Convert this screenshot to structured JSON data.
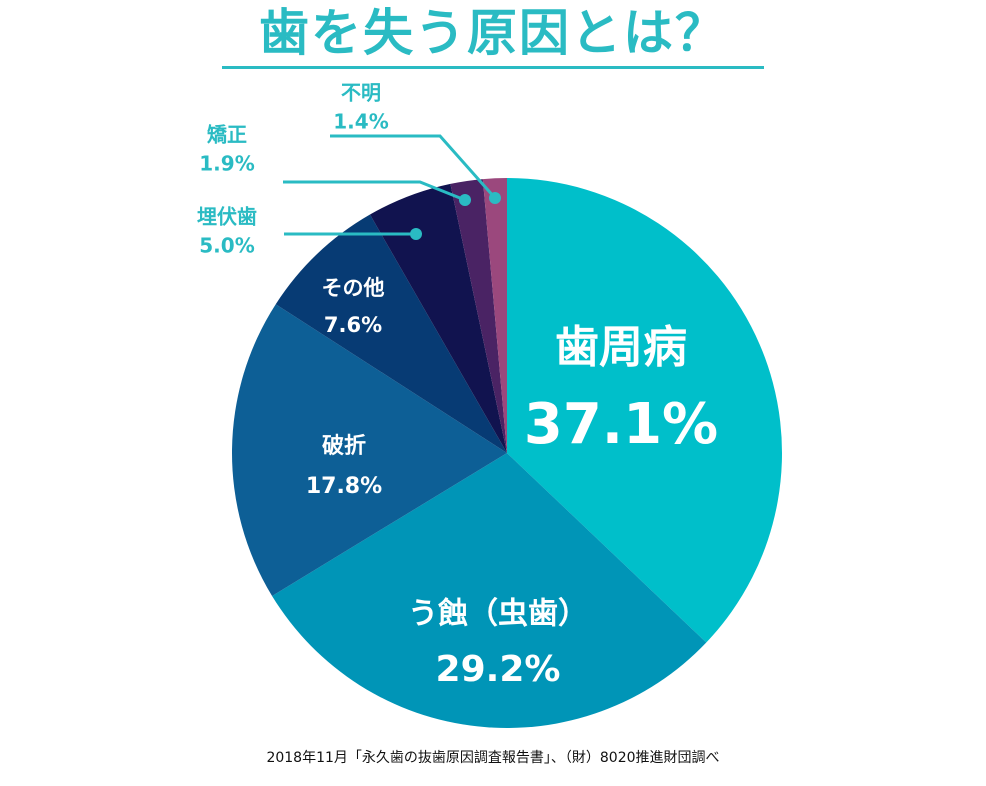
{
  "title": "歯を失う原因とは？",
  "source": "2018年11月「永久歯の抜歯原因調査報告書」、（財）8020推進財団調べ",
  "chart_data": {
    "type": "pie",
    "title": "歯を失う原因とは？",
    "slices": [
      {
        "label": "歯周病",
        "value": 37.1,
        "value_text": "37.1%",
        "color": "#00bfca"
      },
      {
        "label": "う蝕（虫歯）",
        "value": 29.2,
        "value_text": "29.2%",
        "color": "#0095b7"
      },
      {
        "label": "破折",
        "value": 17.8,
        "value_text": "17.8%",
        "color": "#0d5f96"
      },
      {
        "label": "その他",
        "value": 7.6,
        "value_text": "7.6%",
        "color": "#073b74"
      },
      {
        "label": "埋伏歯",
        "value": 5.0,
        "value_text": "5.0%",
        "color": "#11134f"
      },
      {
        "label": "矯正",
        "value": 1.9,
        "value_text": "1.9%",
        "color": "#4a2364"
      },
      {
        "label": "不明",
        "value": 1.4,
        "value_text": "1.4%",
        "color": "#9b487d"
      }
    ],
    "label_color_inside": "#ffffff",
    "label_color_outside": "#2abbc3"
  }
}
